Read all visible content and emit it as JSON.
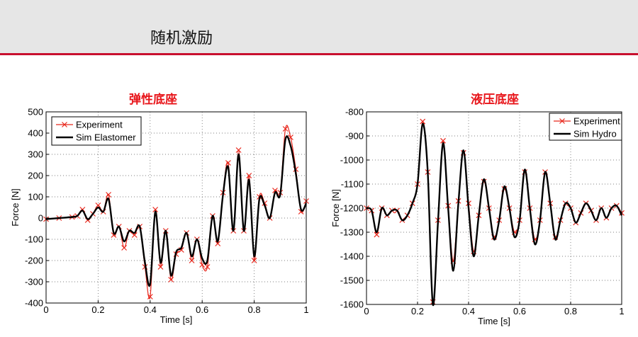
{
  "header": {
    "title": "随机激励"
  },
  "colors": {
    "accent": "#c8102e",
    "experiment": "#e8261b",
    "simulation": "#000000",
    "title_red": "#e8161b"
  },
  "chart_data": [
    {
      "type": "line",
      "title": "弹性底座",
      "xlabel": "Time [s]",
      "ylabel": "Force [N]",
      "xlim": [
        0,
        1
      ],
      "ylim": [
        -400,
        500
      ],
      "xticks": [
        0,
        0.2,
        0.4,
        0.6,
        0.8,
        1
      ],
      "xtick_labels": [
        "0",
        "0.2",
        "0.4",
        "0.6",
        "0.8",
        "1"
      ],
      "yticks": [
        -400,
        -300,
        -200,
        -100,
        0,
        100,
        200,
        300,
        400,
        500
      ],
      "ytick_labels": [
        "-400",
        "-300",
        "-200",
        "-100",
        "0",
        "100",
        "200",
        "300",
        "400",
        "500"
      ],
      "grid": true,
      "legend_position": "top-left",
      "series": [
        {
          "name": "Experiment",
          "style": "red line with x markers",
          "x": [
            0,
            0.05,
            0.1,
            0.12,
            0.14,
            0.16,
            0.18,
            0.2,
            0.22,
            0.24,
            0.26,
            0.28,
            0.3,
            0.32,
            0.34,
            0.36,
            0.38,
            0.4,
            0.42,
            0.44,
            0.46,
            0.48,
            0.5,
            0.52,
            0.54,
            0.56,
            0.58,
            0.6,
            0.62,
            0.64,
            0.66,
            0.68,
            0.7,
            0.72,
            0.74,
            0.76,
            0.78,
            0.8,
            0.82,
            0.84,
            0.86,
            0.88,
            0.9,
            0.92,
            0.94,
            0.96,
            0.98,
            1.0
          ],
          "y": [
            -5,
            0,
            5,
            10,
            40,
            -10,
            20,
            60,
            30,
            110,
            -80,
            -40,
            -140,
            -60,
            -80,
            -40,
            -230,
            -370,
            40,
            -230,
            -60,
            -290,
            -170,
            -150,
            -70,
            -200,
            -100,
            -220,
            -230,
            10,
            -120,
            120,
            260,
            -60,
            320,
            -60,
            200,
            -200,
            100,
            70,
            0,
            130,
            120,
            420,
            380,
            230,
            30,
            80
          ]
        },
        {
          "name": "Sim Elastomer",
          "style": "thick black line",
          "x": [
            0,
            0.05,
            0.1,
            0.12,
            0.14,
            0.16,
            0.18,
            0.2,
            0.22,
            0.24,
            0.26,
            0.28,
            0.3,
            0.32,
            0.34,
            0.36,
            0.38,
            0.4,
            0.42,
            0.44,
            0.46,
            0.48,
            0.5,
            0.52,
            0.54,
            0.56,
            0.58,
            0.6,
            0.62,
            0.64,
            0.66,
            0.68,
            0.7,
            0.72,
            0.74,
            0.76,
            0.78,
            0.8,
            0.82,
            0.84,
            0.86,
            0.88,
            0.9,
            0.92,
            0.94,
            0.96,
            0.98,
            1.0
          ],
          "y": [
            -5,
            0,
            5,
            10,
            35,
            -5,
            20,
            50,
            30,
            90,
            -70,
            -40,
            -110,
            -60,
            -70,
            -40,
            -210,
            -310,
            30,
            -210,
            -60,
            -270,
            -160,
            -140,
            -70,
            -180,
            -100,
            -190,
            -200,
            10,
            -110,
            110,
            240,
            -60,
            300,
            -60,
            180,
            -180,
            90,
            60,
            0,
            120,
            110,
            370,
            340,
            210,
            40,
            70
          ]
        }
      ]
    },
    {
      "type": "line",
      "title": "液压底座",
      "xlabel": "Time [s]",
      "ylabel": "Force [N]",
      "xlim": [
        0,
        1
      ],
      "ylim": [
        -1600,
        -800
      ],
      "xticks": [
        0,
        0.2,
        0.4,
        0.6,
        0.8,
        1
      ],
      "xtick_labels": [
        "0",
        "0.2",
        "0.4",
        "0.6",
        "0.8",
        "1"
      ],
      "yticks": [
        -1600,
        -1500,
        -1400,
        -1300,
        -1200,
        -1100,
        -1000,
        -900,
        -800
      ],
      "ytick_labels": [
        "-1600",
        "-1500",
        "-1400",
        "-1300",
        "-1200",
        "-1100",
        "-1000",
        "-900",
        "-800"
      ],
      "grid": true,
      "legend_position": "top-right",
      "series": [
        {
          "name": "Experiment",
          "style": "red line with x markers",
          "x": [
            0,
            0.02,
            0.04,
            0.06,
            0.08,
            0.1,
            0.12,
            0.14,
            0.16,
            0.18,
            0.2,
            0.22,
            0.24,
            0.26,
            0.28,
            0.3,
            0.32,
            0.34,
            0.36,
            0.38,
            0.4,
            0.42,
            0.44,
            0.46,
            0.48,
            0.5,
            0.52,
            0.54,
            0.56,
            0.58,
            0.6,
            0.62,
            0.64,
            0.66,
            0.68,
            0.7,
            0.72,
            0.74,
            0.76,
            0.78,
            0.8,
            0.82,
            0.84,
            0.86,
            0.88,
            0.9,
            0.92,
            0.94,
            0.96,
            0.98,
            1.0
          ],
          "y": [
            -1200,
            -1210,
            -1310,
            -1200,
            -1230,
            -1210,
            -1210,
            -1250,
            -1230,
            -1180,
            -1100,
            -840,
            -1050,
            -1590,
            -1250,
            -920,
            -1190,
            -1420,
            -1170,
            -970,
            -1180,
            -1380,
            -1230,
            -1090,
            -1200,
            -1320,
            -1250,
            -1120,
            -1200,
            -1300,
            -1250,
            -1050,
            -1200,
            -1330,
            -1250,
            -1050,
            -1180,
            -1320,
            -1250,
            -1180,
            -1200,
            -1260,
            -1220,
            -1180,
            -1210,
            -1250,
            -1200,
            -1240,
            -1200,
            -1190,
            -1220
          ]
        },
        {
          "name": "Sim Hydro",
          "style": "thick black line",
          "x": [
            0,
            0.02,
            0.04,
            0.06,
            0.08,
            0.1,
            0.12,
            0.14,
            0.16,
            0.18,
            0.2,
            0.22,
            0.24,
            0.26,
            0.28,
            0.3,
            0.32,
            0.34,
            0.36,
            0.38,
            0.4,
            0.42,
            0.44,
            0.46,
            0.48,
            0.5,
            0.52,
            0.54,
            0.56,
            0.58,
            0.6,
            0.62,
            0.64,
            0.66,
            0.68,
            0.7,
            0.72,
            0.74,
            0.76,
            0.78,
            0.8,
            0.82,
            0.84,
            0.86,
            0.88,
            0.9,
            0.92,
            0.94,
            0.96,
            0.98,
            1.0
          ],
          "y": [
            -1200,
            -1210,
            -1300,
            -1200,
            -1230,
            -1210,
            -1210,
            -1250,
            -1230,
            -1180,
            -1100,
            -850,
            -1050,
            -1600,
            -1260,
            -930,
            -1200,
            -1460,
            -1180,
            -960,
            -1200,
            -1400,
            -1230,
            -1080,
            -1200,
            -1330,
            -1250,
            -1110,
            -1200,
            -1320,
            -1250,
            -1040,
            -1200,
            -1350,
            -1250,
            -1050,
            -1180,
            -1330,
            -1250,
            -1180,
            -1200,
            -1260,
            -1220,
            -1180,
            -1210,
            -1250,
            -1200,
            -1240,
            -1200,
            -1190,
            -1230
          ]
        }
      ]
    }
  ]
}
